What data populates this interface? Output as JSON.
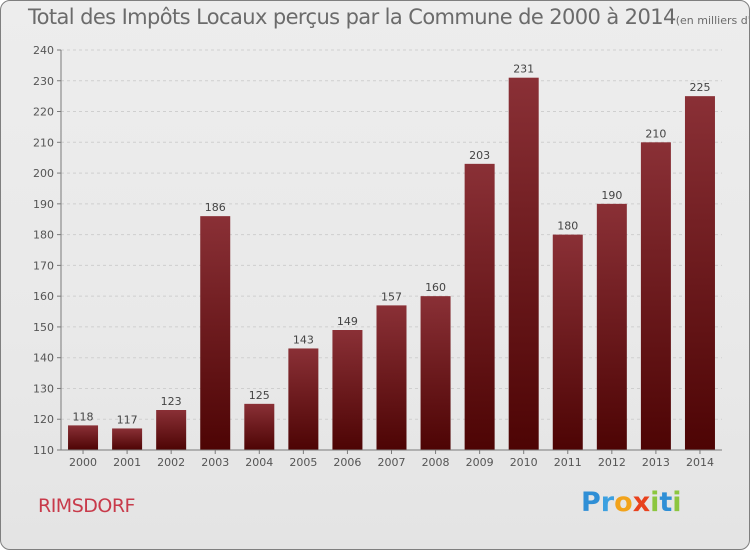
{
  "chart_data": {
    "type": "bar",
    "title": "Total des Impôts Locaux perçus par la Commune de 2000 à 2014",
    "unit_label": "(en milliers d'€)",
    "xlabel": "",
    "ylabel": "",
    "categories": [
      "2000",
      "2001",
      "2002",
      "2003",
      "2004",
      "2005",
      "2006",
      "2007",
      "2008",
      "2009",
      "2010",
      "2011",
      "2012",
      "2013",
      "2014"
    ],
    "values": [
      118,
      117,
      123,
      186,
      125,
      143,
      149,
      157,
      160,
      203,
      231,
      180,
      190,
      210,
      225
    ],
    "ylim": [
      110,
      240
    ],
    "yticks": [
      110,
      120,
      130,
      140,
      150,
      160,
      170,
      180,
      190,
      200,
      210,
      220,
      230,
      240
    ],
    "grid": true,
    "bar_color": "#7a1e24"
  },
  "commune": "RIMSDORF",
  "logo": [
    "P",
    "r",
    "o",
    "x",
    "i",
    "t",
    "i"
  ]
}
